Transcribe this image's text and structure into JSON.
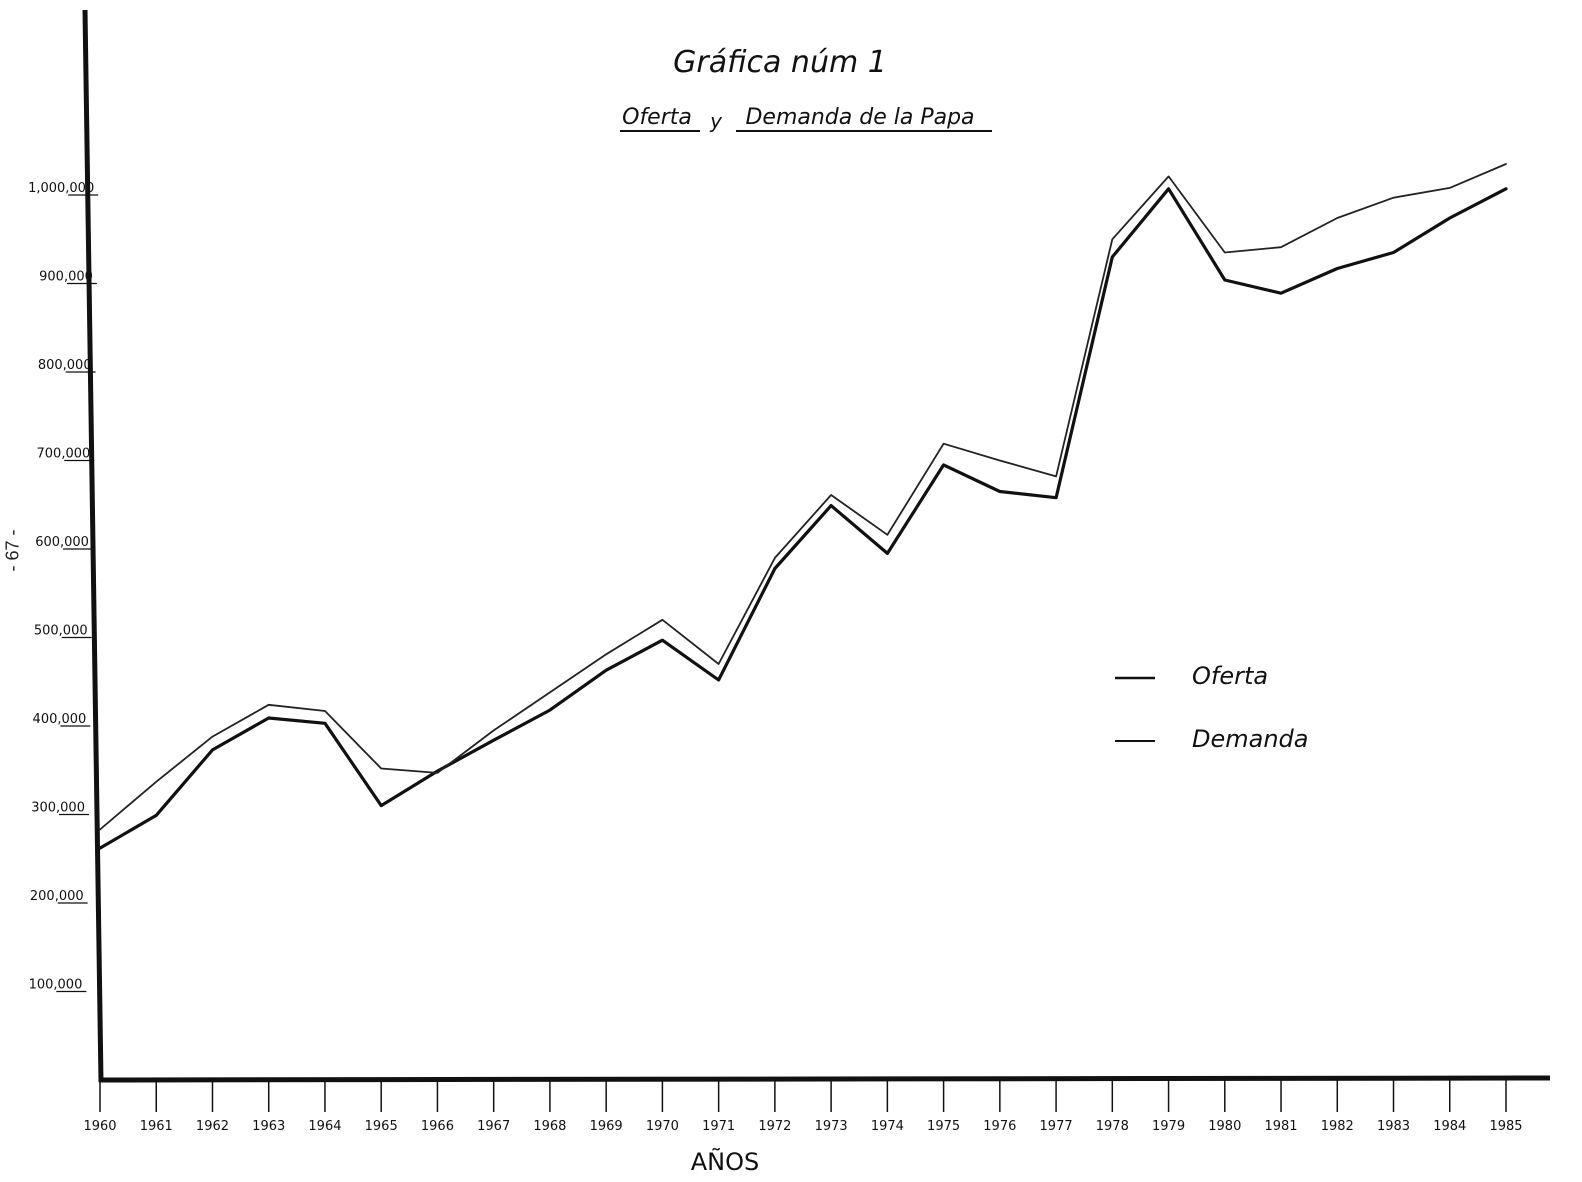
{
  "page_number": "- 67 -",
  "chart_data": {
    "type": "line",
    "title": "Gráfica núm 1",
    "subtitle_parts": [
      "Oferta",
      "y",
      "Demanda de la Papa"
    ],
    "xlabel": "AÑOS",
    "ylabel": "",
    "x": [
      1960,
      1961,
      1962,
      1963,
      1964,
      1965,
      1966,
      1967,
      1968,
      1969,
      1970,
      1971,
      1972,
      1973,
      1974,
      1975,
      1976,
      1977,
      1978,
      1979,
      1980,
      1981,
      1982,
      1983,
      1984,
      1985
    ],
    "x_tick_labels": [
      "1960",
      "1961",
      "1962",
      "1963",
      "1964",
      "1965",
      "1966",
      "1967",
      "1968",
      "1969",
      "1970",
      "1971",
      "1972",
      "1973",
      "1974",
      "1975",
      "1976",
      "1977",
      "1978",
      "1979",
      "1980",
      "1981",
      "1982",
      "1983",
      "1984",
      "1985"
    ],
    "ylim": [
      0,
      1100000
    ],
    "y_tick_labels": [
      "100,000",
      "200,000",
      "300,000",
      "400,000",
      "500,000",
      "600,000",
      "700,000",
      "800,000",
      "900,000",
      "1,000,000"
    ],
    "y_ticks": [
      100000,
      200000,
      300000,
      400000,
      500000,
      600000,
      700000,
      800000,
      900000,
      1000000
    ],
    "grid": false,
    "legend_position": "right",
    "series": [
      {
        "name": "Oferta",
        "color": "#111111",
        "values": [
          262000,
          299000,
          373000,
          409000,
          403000,
          310000,
          349000,
          384000,
          418000,
          463000,
          497000,
          452000,
          578000,
          649000,
          595000,
          695000,
          665000,
          658000,
          930000,
          1007000,
          904000,
          889000,
          917000,
          935000,
          974000,
          1007000
        ]
      },
      {
        "name": "Demanda",
        "color": "#222222",
        "values": [
          283000,
          337000,
          388000,
          424000,
          417000,
          352000,
          347000,
          395000,
          438000,
          481000,
          520000,
          470000,
          590000,
          661000,
          616000,
          719000,
          700000,
          682000,
          950000,
          1021000,
          935000,
          941000,
          974000,
          997000,
          1008000,
          1035000
        ]
      }
    ]
  }
}
